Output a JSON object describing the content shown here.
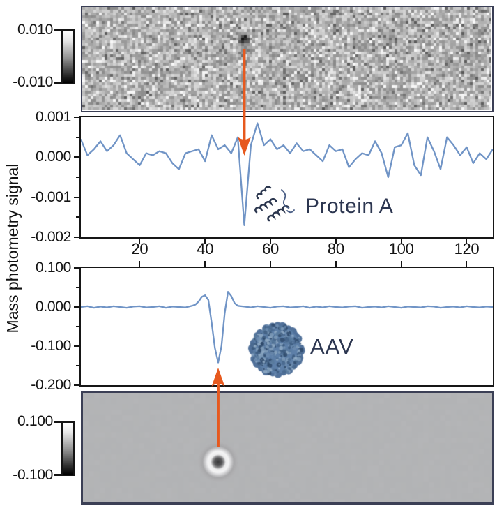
{
  "figure": {
    "ylabel": "Mass photometry signal"
  },
  "annotation_labels": {
    "protein": "Protein A",
    "aav": "AAV"
  },
  "colors": {
    "trace_blue": "#7094c6",
    "arrow_orange": "#e7591e",
    "label_navy": "#2c3650",
    "image_border": "#3a3e55",
    "plot_border": "#161616",
    "capsid_blue": "#5d7fa8"
  },
  "chart_data": [
    {
      "id": "raw_image_protein",
      "type": "image",
      "description": "Noisy grayscale interferometric frame; dark spot (protein landing event) marked by downward orange arrow",
      "colorbar_ticks": [
        "0.010",
        "-0.010"
      ],
      "value_range": [
        -0.01,
        0.01
      ],
      "spot": {
        "x_frac": 0.39,
        "y_frac": 0.31
      }
    },
    {
      "id": "protein_a_trace",
      "type": "line",
      "series_label": "Protein A",
      "xlim": [
        2,
        128
      ],
      "ylim": [
        -0.002,
        0.001
      ],
      "xtick_values": [
        20,
        40,
        60,
        80,
        100,
        120
      ],
      "xtick_labels": [
        "20",
        "40",
        "60",
        "80",
        "100",
        "120"
      ],
      "ytick_values": [
        0.001,
        0,
        -0.001,
        -0.002
      ],
      "ytick_labels": [
        "0.001",
        "0.000",
        "-0.001",
        "-0.002"
      ],
      "ytick_minor": [
        0.0005,
        -0.0005,
        -0.0015
      ],
      "arrow_at_x": 52,
      "x": [
        2,
        4,
        6,
        8,
        10,
        12,
        14,
        16,
        18,
        20,
        22,
        24,
        26,
        28,
        30,
        32,
        34,
        36,
        38,
        40,
        42,
        44,
        46,
        48,
        50,
        52,
        54,
        56,
        58,
        60,
        62,
        64,
        66,
        68,
        70,
        72,
        74,
        76,
        78,
        80,
        82,
        84,
        86,
        88,
        90,
        92,
        94,
        96,
        98,
        100,
        102,
        104,
        106,
        108,
        110,
        112,
        114,
        116,
        118,
        120,
        122,
        124,
        126,
        128
      ],
      "y": [
        0.00045,
        5e-05,
        0.0002,
        0.0004,
        0.00015,
        0.0003,
        0.00055,
        0.0001,
        -5e-05,
        -0.0002,
        0.0001,
        5e-05,
        0.00015,
        0.0001,
        -0.00015,
        -0.0003,
        0.0001,
        0.00015,
        0.0002,
        -0.0001,
        0.00055,
        0.0002,
        0.0003,
        0.0001,
        0.0005,
        -0.0017,
        0.0003,
        0.00085,
        0.0003,
        0.00045,
        0.0002,
        0.0003,
        0.0001,
        0.00035,
        0.00015,
        0.0002,
        5e-05,
        -0.0001,
        0.0003,
        0.00015,
        0.0002,
        -0.00025,
        -5e-05,
        0.0001,
        5e-05,
        0.0004,
        0.0001,
        -0.0005,
        0.00025,
        0.0003,
        0.0006,
        -0.0002,
        -0.00045,
        0.0005,
        0.00015,
        -0.0003,
        0.0005,
        0.0003,
        5e-05,
        0.00025,
        -0.00015,
        0.0001,
        -5e-05,
        0.0002
      ]
    },
    {
      "id": "aav_trace",
      "type": "line",
      "series_label": "AAV",
      "xlim": [
        2,
        128
      ],
      "ylim": [
        -0.2,
        0.1
      ],
      "xticks_on_top": true,
      "xtick_values": [
        20,
        40,
        60,
        80,
        100,
        120
      ],
      "ytick_values": [
        0.1,
        0,
        -0.1,
        -0.2
      ],
      "ytick_labels": [
        "0.100",
        "0.000",
        "-0.100",
        "-0.200"
      ],
      "ytick_minor": [
        0.05,
        -0.05,
        -0.15
      ],
      "arrow_at_x": 44,
      "x": [
        2,
        4,
        6,
        8,
        10,
        12,
        14,
        16,
        18,
        20,
        22,
        24,
        26,
        28,
        30,
        32,
        34,
        36,
        37,
        38,
        39,
        40,
        41,
        42,
        43,
        44,
        45,
        46,
        47,
        48,
        49,
        50,
        52,
        54,
        56,
        58,
        60,
        62,
        64,
        66,
        68,
        70,
        72,
        74,
        76,
        78,
        80,
        82,
        84,
        86,
        88,
        90,
        92,
        94,
        96,
        98,
        100,
        102,
        104,
        106,
        108,
        110,
        112,
        114,
        116,
        118,
        120,
        122,
        124,
        126,
        128
      ],
      "y": [
        0.0,
        0.002,
        -0.002,
        0.001,
        -0.001,
        0.002,
        0.0,
        -0.002,
        0.001,
        0.002,
        -0.001,
        0.0,
        0.002,
        -0.002,
        0.001,
        0.0,
        -0.001,
        0.003,
        0.006,
        0.014,
        0.026,
        0.03,
        0.018,
        -0.04,
        -0.105,
        -0.142,
        -0.1,
        -0.015,
        0.039,
        0.028,
        0.01,
        0.003,
        0.001,
        -0.001,
        0.002,
        0.0,
        -0.002,
        0.001,
        0.002,
        -0.001,
        0.0,
        0.002,
        -0.002,
        0.001,
        -0.001,
        0.002,
        0.0,
        -0.001,
        0.001,
        0.002,
        -0.002,
        0.0,
        0.001,
        -0.001,
        0.002,
        0.0,
        -0.002,
        0.001,
        0.0,
        -0.001,
        0.002,
        0.001,
        -0.002,
        0.0,
        0.001,
        -0.001,
        0.002,
        0.0,
        -0.001,
        0.001,
        0.0
      ]
    },
    {
      "id": "psf_image_aav",
      "type": "image",
      "description": "Smooth grayscale frame; dark PSF spot with bright ring (AAV particle) marked by upward orange arrow",
      "colorbar_ticks": [
        "0.100",
        "-0.100"
      ],
      "value_range": [
        -0.1,
        0.1
      ],
      "spot": {
        "x_frac": 0.33,
        "y_frac": 0.63
      }
    }
  ]
}
